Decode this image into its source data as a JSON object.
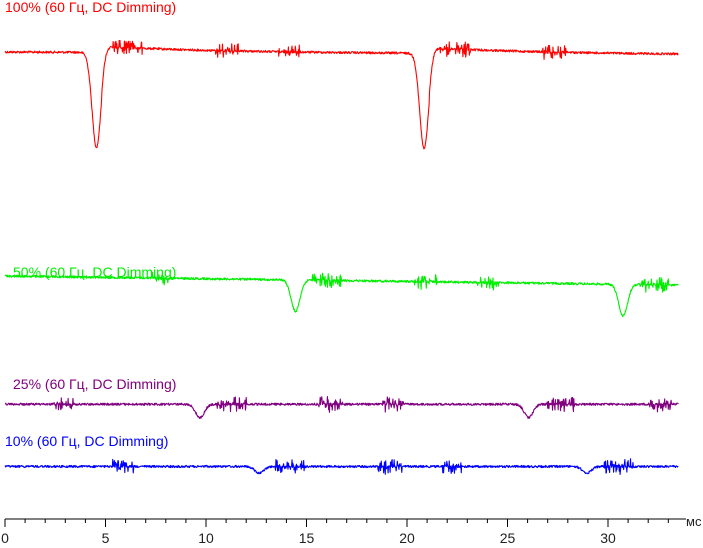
{
  "chart_data": {
    "type": "line",
    "title": "",
    "xlabel": "мс",
    "ylabel": "",
    "xlim": [
      0,
      33.5
    ],
    "x_ticks": [
      0,
      5,
      10,
      15,
      20,
      25,
      30
    ],
    "x_tick_labels": [
      "0",
      "5",
      "10",
      "15",
      "20",
      "25",
      "30"
    ],
    "minor_tick_step": 1,
    "grid": false,
    "series": [
      {
        "name": "100% (60 Гц, DC Dimming)",
        "color": "#ff0000",
        "x_range": [
          0,
          33.5
        ],
        "start_level": 0.5,
        "end_level": 0.46,
        "dips": [
          {
            "x": 4.55,
            "depth": 1.0,
            "recovery": "overshoot"
          },
          {
            "x": 20.85,
            "depth": 1.0,
            "recovery": "overshoot"
          }
        ]
      },
      {
        "name": "50% (60 Гц, DC Dimming)",
        "color": "#00ee00",
        "x_range": [
          0,
          33.5
        ],
        "start_level": 0.6,
        "end_level": 0.47,
        "dips": [
          {
            "x": 14.45,
            "depth": 0.55,
            "recovery": "smooth"
          },
          {
            "x": 30.75,
            "depth": 0.55,
            "recovery": "smooth"
          }
        ]
      },
      {
        "name": "25% (60 Гц, DC Dimming)",
        "color": "#800080",
        "x_range": [
          0,
          33.5
        ],
        "start_level": 0.24,
        "end_level": 0.24,
        "dips": [
          {
            "x": 9.7,
            "depth": 0.35,
            "recovery": "smooth"
          },
          {
            "x": 26.05,
            "depth": 0.35,
            "recovery": "smooth"
          }
        ]
      },
      {
        "name": "10% (60 Гц, DC Dimming)",
        "color": "#0000ff",
        "x_range": [
          0,
          33.5
        ],
        "start_level": 0.14,
        "end_level": 0.14,
        "dips": [
          {
            "x": 12.65,
            "depth": 0.25,
            "recovery": "smooth"
          },
          {
            "x": 28.95,
            "depth": 0.25,
            "recovery": "smooth"
          }
        ]
      }
    ]
  }
}
